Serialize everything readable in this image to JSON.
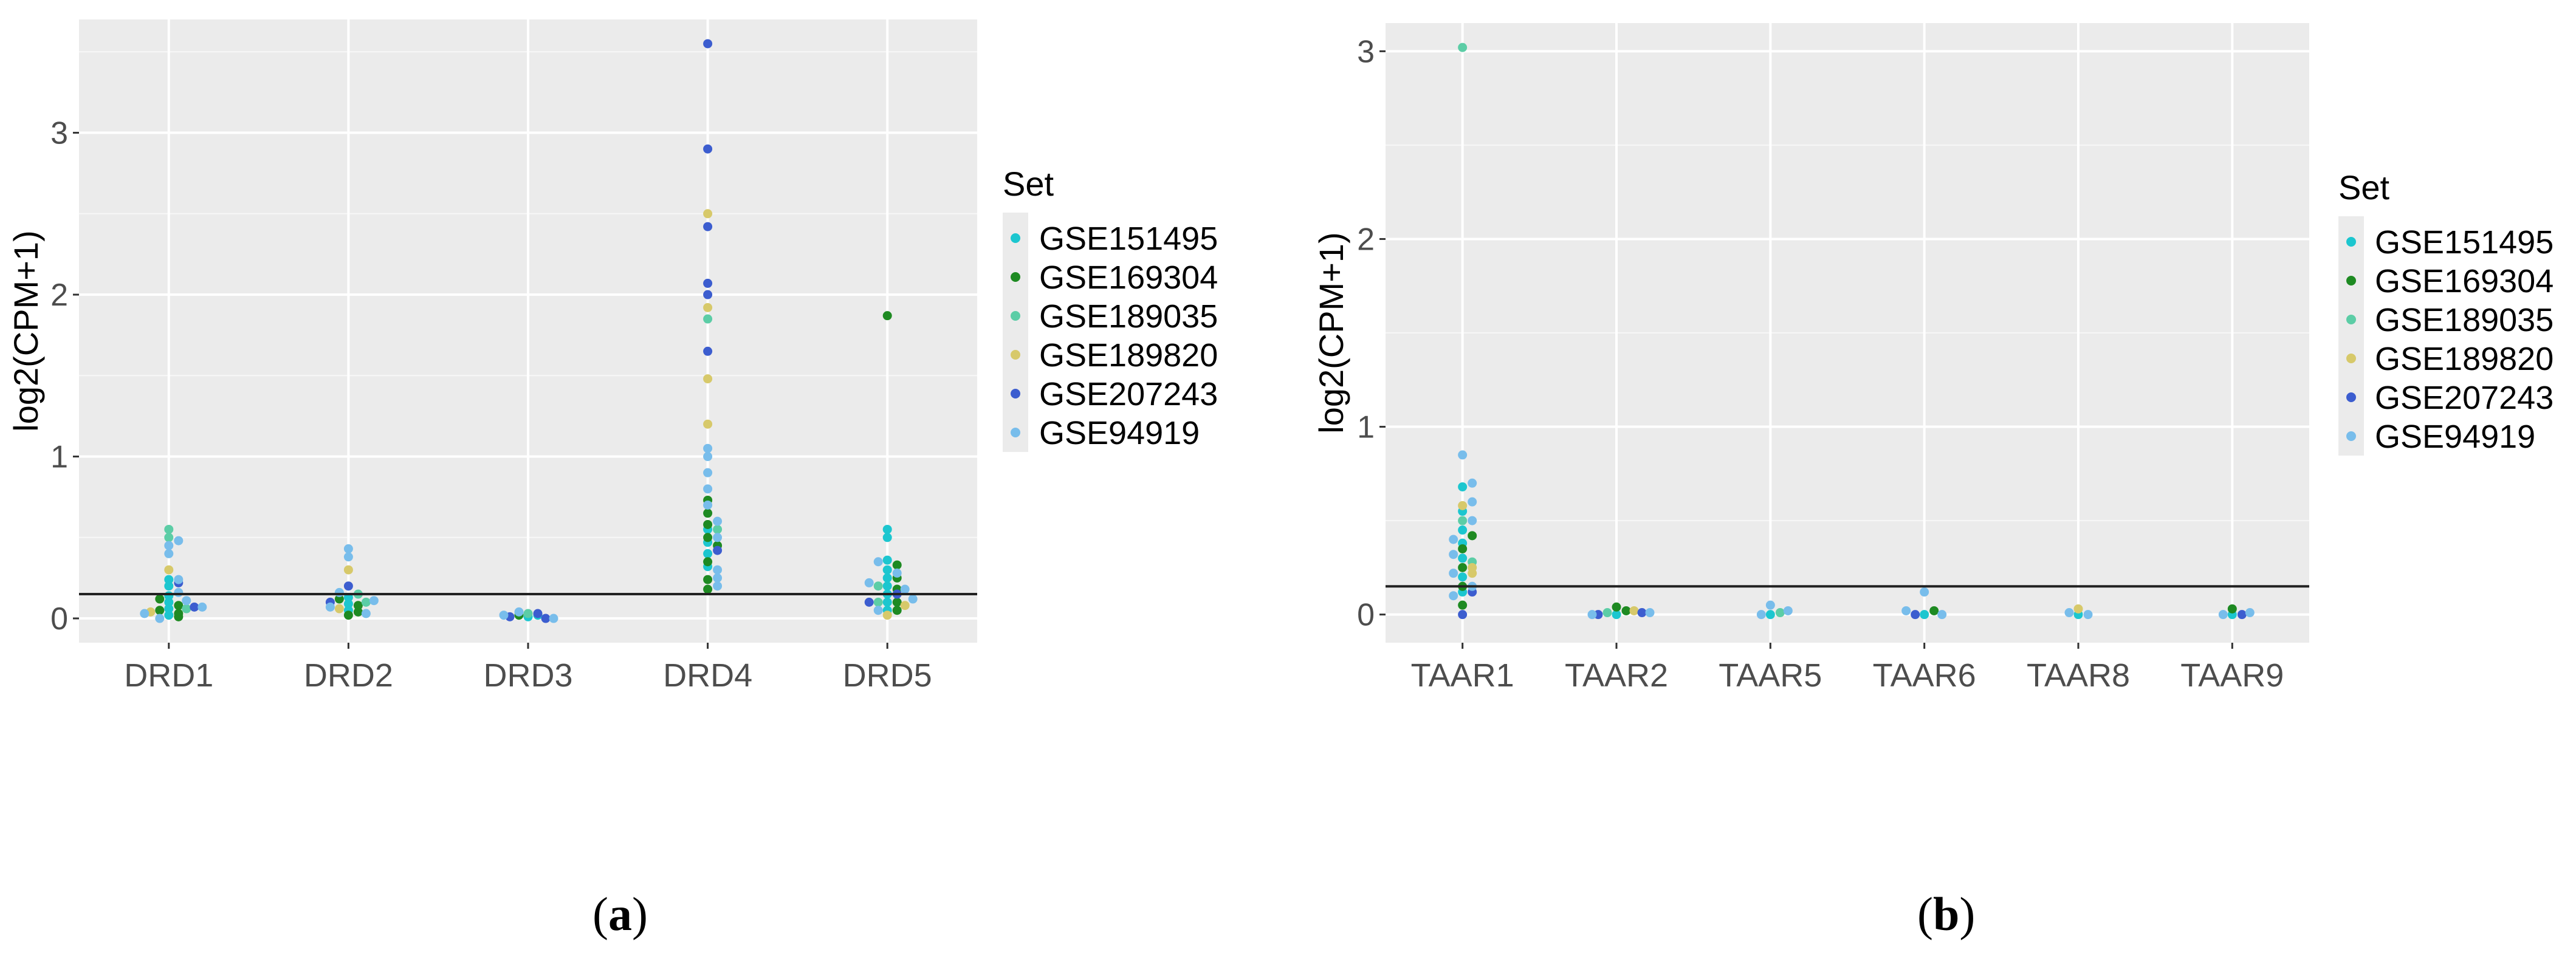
{
  "legend": {
    "title": "Set",
    "entries": [
      {
        "name": "GSE151495",
        "color": "#1CC6CF"
      },
      {
        "name": "GSE169304",
        "color": "#1E8A22"
      },
      {
        "name": "GSE189035",
        "color": "#5CCDA6"
      },
      {
        "name": "GSE189820",
        "color": "#D7C96A"
      },
      {
        "name": "GSE207243",
        "color": "#3C5DCF"
      },
      {
        "name": "GSE94919",
        "color": "#78BDEB"
      }
    ]
  },
  "colors": {
    "panel_bg": "#EBEBEB",
    "grid": "#FFFFFF",
    "reference_line": "#222222",
    "axis_text": "#4D4D4D"
  },
  "panel_labels": {
    "a": "a",
    "b": "b"
  },
  "chart_data": [
    {
      "id": "a",
      "type": "scatter",
      "title": "",
      "xlabel": "",
      "ylabel": "log2(CPM+1)",
      "categories": [
        "DRD1",
        "DRD2",
        "DRD3",
        "DRD4",
        "DRD5"
      ],
      "ylim": [
        -0.15,
        3.7
      ],
      "yticks": [
        0,
        1,
        2,
        3
      ],
      "reference_line": 0.15,
      "grid": true,
      "legend_position": "right",
      "series": [
        {
          "name": "GSE151495",
          "points": [
            [
              0,
              0.02
            ],
            [
              0,
              0.06
            ],
            [
              0,
              0.1
            ],
            [
              0,
              0.14
            ],
            [
              0,
              0.2
            ],
            [
              0,
              0.24
            ],
            [
              1,
              0.05
            ],
            [
              1,
              0.09
            ],
            [
              1,
              0.13
            ],
            [
              2,
              0.01
            ],
            [
              2,
              0.02
            ],
            [
              3,
              0.32
            ],
            [
              3,
              0.4
            ],
            [
              3,
              0.47
            ],
            [
              3,
              0.55
            ],
            [
              4,
              0.05
            ],
            [
              4,
              0.1
            ],
            [
              4,
              0.15
            ],
            [
              4,
              0.2
            ],
            [
              4,
              0.25
            ],
            [
              4,
              0.3
            ],
            [
              4,
              0.36
            ],
            [
              4,
              0.5
            ],
            [
              4,
              0.55
            ]
          ]
        },
        {
          "name": "GSE169304",
          "points": [
            [
              0,
              0.01
            ],
            [
              0,
              0.03
            ],
            [
              0,
              0.05
            ],
            [
              0,
              0.08
            ],
            [
              0,
              0.12
            ],
            [
              1,
              0.02
            ],
            [
              1,
              0.04
            ],
            [
              1,
              0.08
            ],
            [
              1,
              0.12
            ],
            [
              2,
              0.02
            ],
            [
              3,
              0.18
            ],
            [
              3,
              0.24
            ],
            [
              3,
              0.35
            ],
            [
              3,
              0.45
            ],
            [
              3,
              0.5
            ],
            [
              3,
              0.58
            ],
            [
              3,
              0.65
            ],
            [
              3,
              0.73
            ],
            [
              4,
              0.05
            ],
            [
              4,
              0.1
            ],
            [
              4,
              0.18
            ],
            [
              4,
              0.25
            ],
            [
              4,
              0.33
            ],
            [
              4,
              1.87
            ]
          ]
        },
        {
          "name": "GSE189035",
          "points": [
            [
              0,
              0.06
            ],
            [
              0,
              0.5
            ],
            [
              0,
              0.55
            ],
            [
              1,
              0.1
            ],
            [
              1,
              0.15
            ],
            [
              2,
              0.03
            ],
            [
              3,
              1.85
            ],
            [
              3,
              0.55
            ],
            [
              4,
              0.1
            ],
            [
              4,
              0.2
            ]
          ]
        },
        {
          "name": "GSE189820",
          "points": [
            [
              0,
              0.04
            ],
            [
              0,
              0.3
            ],
            [
              1,
              0.06
            ],
            [
              1,
              0.3
            ],
            [
              3,
              2.5
            ],
            [
              3,
              1.92
            ],
            [
              3,
              1.48
            ],
            [
              3,
              1.2
            ],
            [
              4,
              0.02
            ],
            [
              4,
              0.08
            ]
          ]
        },
        {
          "name": "GSE207243",
          "points": [
            [
              0,
              0.07
            ],
            [
              0,
              0.22
            ],
            [
              1,
              0.2
            ],
            [
              1,
              0.1
            ],
            [
              2,
              0.0
            ],
            [
              2,
              0.01
            ],
            [
              2,
              0.03
            ],
            [
              3,
              3.55
            ],
            [
              3,
              2.9
            ],
            [
              3,
              2.42
            ],
            [
              3,
              2.07
            ],
            [
              3,
              2.0
            ],
            [
              3,
              1.65
            ],
            [
              3,
              0.42
            ],
            [
              4,
              0.1
            ],
            [
              4,
              0.15
            ]
          ]
        },
        {
          "name": "GSE94919",
          "points": [
            [
              0,
              0.0
            ],
            [
              0,
              0.03
            ],
            [
              0,
              0.07
            ],
            [
              0,
              0.11
            ],
            [
              0,
              0.16
            ],
            [
              0,
              0.24
            ],
            [
              0,
              0.4
            ],
            [
              0,
              0.45
            ],
            [
              0,
              0.48
            ],
            [
              1,
              0.03
            ],
            [
              1,
              0.07
            ],
            [
              1,
              0.11
            ],
            [
              1,
              0.16
            ],
            [
              1,
              0.38
            ],
            [
              1,
              0.43
            ],
            [
              2,
              0.0
            ],
            [
              2,
              0.02
            ],
            [
              2,
              0.04
            ],
            [
              3,
              0.2
            ],
            [
              3,
              0.25
            ],
            [
              3,
              0.3
            ],
            [
              3,
              0.6
            ],
            [
              3,
              0.7
            ],
            [
              3,
              0.8
            ],
            [
              3,
              0.9
            ],
            [
              3,
              1.0
            ],
            [
              3,
              1.05
            ],
            [
              3,
              0.5
            ],
            [
              4,
              0.05
            ],
            [
              4,
              0.12
            ],
            [
              4,
              0.18
            ],
            [
              4,
              0.22
            ],
            [
              4,
              0.28
            ],
            [
              4,
              0.35
            ]
          ]
        }
      ]
    },
    {
      "id": "b",
      "type": "scatter",
      "title": "",
      "xlabel": "",
      "ylabel": "log2(CPM+1)",
      "categories": [
        "TAAR1",
        "TAAR2",
        "TAAR5",
        "TAAR6",
        "TAAR8",
        "TAAR9"
      ],
      "ylim": [
        -0.15,
        3.15
      ],
      "yticks": [
        0,
        1,
        2,
        3
      ],
      "reference_line": 0.15,
      "grid": true,
      "legend_position": "right",
      "series": [
        {
          "name": "GSE151495",
          "points": [
            [
              0,
              0.12
            ],
            [
              0,
              0.2
            ],
            [
              0,
              0.3
            ],
            [
              0,
              0.38
            ],
            [
              0,
              0.45
            ],
            [
              0,
              0.55
            ],
            [
              0,
              0.68
            ],
            [
              1,
              0.0
            ],
            [
              2,
              0.0
            ],
            [
              3,
              0.0
            ],
            [
              4,
              0.0
            ],
            [
              5,
              0.0
            ]
          ]
        },
        {
          "name": "GSE169304",
          "points": [
            [
              0,
              0.05
            ],
            [
              0,
              0.15
            ],
            [
              0,
              0.25
            ],
            [
              0,
              0.35
            ],
            [
              0,
              0.42
            ],
            [
              1,
              0.02
            ],
            [
              1,
              0.04
            ],
            [
              3,
              0.02
            ],
            [
              5,
              0.03
            ]
          ]
        },
        {
          "name": "GSE189035",
          "points": [
            [
              0,
              3.02
            ],
            [
              0,
              0.28
            ],
            [
              0,
              0.5
            ],
            [
              1,
              0.01
            ],
            [
              2,
              0.01
            ]
          ]
        },
        {
          "name": "GSE189820",
          "points": [
            [
              0,
              0.22
            ],
            [
              0,
              0.58
            ],
            [
              0,
              0.25
            ],
            [
              1,
              0.02
            ],
            [
              4,
              0.03
            ]
          ]
        },
        {
          "name": "GSE207243",
          "points": [
            [
              0,
              0.0
            ],
            [
              0,
              0.12
            ],
            [
              1,
              0.0
            ],
            [
              1,
              0.01
            ],
            [
              3,
              0.0
            ],
            [
              5,
              0.0
            ]
          ]
        },
        {
          "name": "GSE94919",
          "points": [
            [
              0,
              0.85
            ],
            [
              0,
              0.7
            ],
            [
              0,
              0.6
            ],
            [
              0,
              0.5
            ],
            [
              0,
              0.4
            ],
            [
              0,
              0.32
            ],
            [
              0,
              0.22
            ],
            [
              0,
              0.15
            ],
            [
              0,
              0.1
            ],
            [
              1,
              0.0
            ],
            [
              1,
              0.01
            ],
            [
              2,
              0.0
            ],
            [
              2,
              0.02
            ],
            [
              2,
              0.05
            ],
            [
              3,
              0.0
            ],
            [
              3,
              0.02
            ],
            [
              3,
              0.12
            ],
            [
              4,
              0.0
            ],
            [
              4,
              0.01
            ],
            [
              5,
              0.0
            ],
            [
              5,
              0.01
            ]
          ]
        }
      ]
    }
  ]
}
